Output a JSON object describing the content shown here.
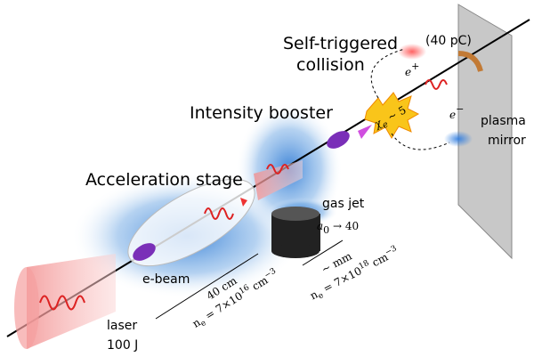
{
  "labels": {
    "collision": {
      "line1": "Self-triggered",
      "line2": "collision"
    },
    "charge": "(40 pC)",
    "positron": {
      "base": "e",
      "sup": "+"
    },
    "electron": {
      "base": "e",
      "sup": "−"
    },
    "mirror": {
      "line1": "plasma",
      "line2": "mirror"
    },
    "booster": "Intensity booster",
    "chi": {
      "base": "χ",
      "sub": "e",
      "rest": " ~ 5"
    },
    "acceleration": "Acceleration stage",
    "gas_jet": "gas jet",
    "a0": {
      "base": "a",
      "sub": "0",
      "rest": " → 40"
    },
    "ebeam": "e-beam",
    "stage1": {
      "length": "40 cm",
      "n": "n",
      "n_sub": "e",
      "eq": " = 7×10",
      "exp": "16",
      "unit": " cm",
      "unit_exp": "−3"
    },
    "stage2": {
      "length": "~ mm",
      "n": "n",
      "n_sub": "e",
      "eq": " = 7×10",
      "exp": "18",
      "unit": " cm",
      "unit_exp": "−3"
    },
    "laser": {
      "line1": "laser",
      "line2": "100 J"
    }
  }
}
